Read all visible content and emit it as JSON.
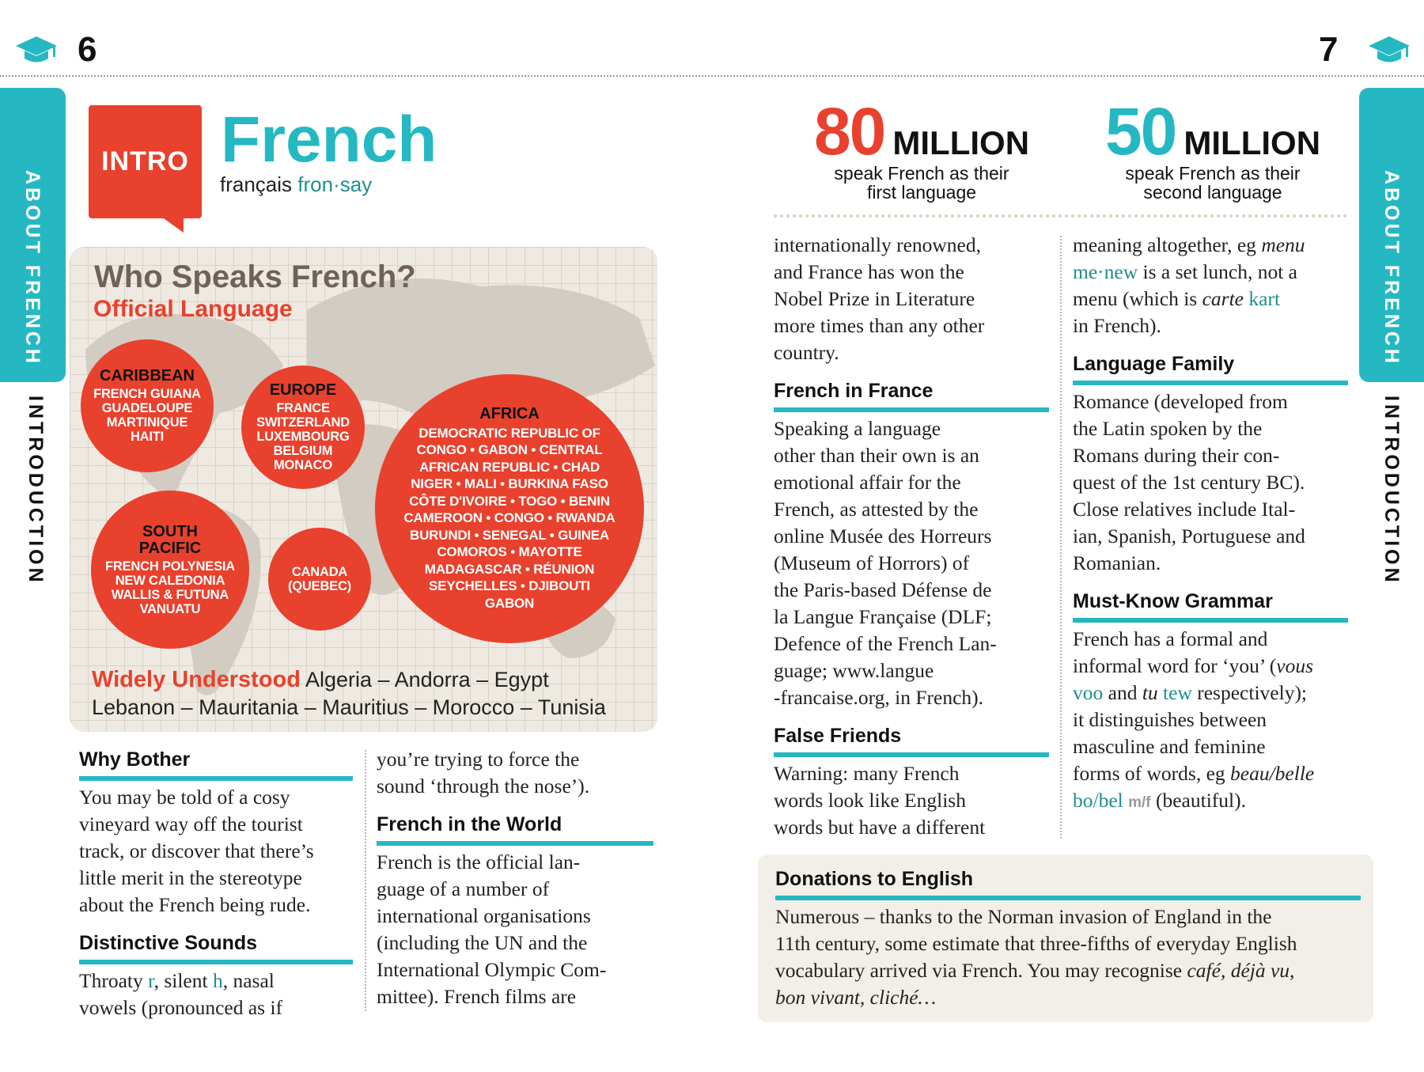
{
  "header": {
    "left_page_number": "6",
    "right_page_number": "7",
    "icon": "graduation-cap-icon",
    "accent": "#25b8c3",
    "red": "#e8412d"
  },
  "side_tabs": {
    "tab_label": "ABOUT FRENCH",
    "section_label": "INTRODUCTION"
  },
  "intro": {
    "badge": "INTRO",
    "title": "French",
    "native_name": "français",
    "pronunciation": "fron·say"
  },
  "map_panel": {
    "title": "Who Speaks French?",
    "subtitle": "Official Language",
    "regions": [
      {
        "name": "CARIBBEAN",
        "countries": [
          "FRENCH GUIANA",
          "GUADELOUPE",
          "MARTINIQUE",
          "HAITI"
        ]
      },
      {
        "name": "EUROPE",
        "countries": [
          "FRANCE",
          "SWITZERLAND",
          "LUXEMBOURG",
          "BELGIUM",
          "MONACO"
        ]
      },
      {
        "name": "SOUTH PACIFIC",
        "countries": [
          "FRENCH POLYNESIA",
          "NEW CALEDONIA",
          "WALLIS & FUTUNA",
          "VANUATU"
        ]
      },
      {
        "name": "",
        "countries": [
          "CANADA",
          "(QUEBEC)"
        ]
      },
      {
        "name": "AFRICA",
        "countries": [
          "DEMOCRATIC REPUBLIC OF",
          "CONGO • GABON • CENTRAL",
          "AFRICAN REPUBLIC • CHAD",
          "NIGER • MALI • BURKINA FASO",
          "CÔTE D'IVOIRE  • TOGO • BENIN",
          "CAMEROON • CONGO • RWANDA",
          "BURUNDI • SENEGAL • GUINEA",
          "COMOROS • MAYOTTE",
          "MADAGASCAR • RÉUNION",
          "SEYCHELLES • DJIBOUTI",
          "GABON"
        ]
      }
    ],
    "widely_label": "Widely Understood",
    "widely_line1": "Algeria – Andorra – Egypt",
    "widely_line2": "Lebanon – Mauritania – Mauritius – Morocco – Tunisia"
  },
  "stats": [
    {
      "number": "80",
      "unit": "MILLION",
      "line1": "speak French as their",
      "line2": "first language",
      "color": "#e8412d"
    },
    {
      "number": "50",
      "unit": "MILLION",
      "line1": "speak French as their",
      "line2": "second language",
      "color": "#25b8c3"
    }
  ],
  "columns": [
    [
      {
        "heading": "Why Bother"
      },
      {
        "lines": [
          "You may be told of a cosy",
          "vineyard way off the tourist",
          "track, or discover that there’s",
          "little merit in the stereotype",
          "about the French being rude."
        ]
      },
      {
        "heading": "Distinctive Sounds"
      },
      {
        "lines": [
          [
            [
              "Throaty ",
              ""
            ],
            [
              "r",
              "p"
            ],
            [
              ", silent ",
              ""
            ],
            [
              "h",
              "p"
            ],
            [
              ", nasal",
              ""
            ]
          ],
          "vowels (pronounced as if"
        ]
      }
    ],
    [
      {
        "lines": [
          "you’re trying to force the",
          "sound ‘through the nose’)."
        ]
      },
      {
        "heading": "French in the World"
      },
      {
        "lines": [
          "French is the official lan-",
          "guage of a number of",
          "international organisations",
          "(including the UN and the",
          "International Olympic Com-",
          "mittee). French films are"
        ]
      }
    ],
    [
      {
        "lines": [
          "internationally renowned,",
          "and France has won the",
          "Nobel Prize in Literature",
          "more times than any other",
          "country."
        ]
      },
      {
        "heading": "French in France"
      },
      {
        "lines": [
          "Speaking a language",
          "other than their own is an",
          "emotional affair for the",
          "French, as attested by the",
          "online Musée des Horreurs",
          "(Museum of Horrors) of",
          "the Paris-based Défense de",
          "la Langue Française (DLF;",
          "Defence of the French Lan-",
          "guage; www.langue",
          "-francaise.org, in French)."
        ]
      },
      {
        "heading": "False Friends"
      },
      {
        "lines": [
          "Warning: many French",
          "words look like English",
          "words but have a different"
        ]
      }
    ],
    [
      {
        "lines": [
          [
            [
              "meaning altogether, eg ",
              ""
            ],
            [
              "menu",
              "i"
            ]
          ],
          [
            [
              "me·new",
              "p"
            ],
            [
              " is a set lunch, not a",
              ""
            ]
          ],
          [
            [
              "menu (which is ",
              ""
            ],
            [
              "carte",
              "i"
            ],
            [
              " ",
              ""
            ],
            [
              "kart",
              "p"
            ]
          ],
          "in French)."
        ]
      },
      {
        "heading": "Language Family"
      },
      {
        "lines": [
          "Romance (developed from",
          "the Latin spoken by the",
          "Romans during their con-",
          "quest of the 1st century BC).",
          "Close relatives include Ital-",
          "ian, Spanish, Portuguese and",
          "Romanian."
        ]
      },
      {
        "heading": "Must-Know Grammar"
      },
      {
        "lines": [
          "French has a formal and",
          [
            [
              "informal word for ‘you’ (",
              ""
            ],
            [
              "vous",
              "i"
            ]
          ],
          [
            [
              "voo",
              "p"
            ],
            [
              " and ",
              ""
            ],
            [
              "tu",
              "i"
            ],
            [
              " ",
              ""
            ],
            [
              "tew",
              "p"
            ],
            [
              " respectively);",
              ""
            ]
          ],
          "it distinguishes between",
          "masculine and feminine",
          [
            [
              "forms of words, eg ",
              ""
            ],
            [
              "beau/belle",
              "i"
            ]
          ],
          [
            [
              "bo/bel",
              "p"
            ],
            [
              " ",
              ""
            ],
            [
              "m/f",
              "g"
            ],
            [
              " (beautiful).",
              ""
            ]
          ]
        ]
      }
    ]
  ],
  "donations": [
    {
      "heading": "Donations to English"
    },
    {
      "lines": [
        "Numerous – thanks to the Norman invasion of England in the",
        "11th century, some estimate that three-fifths of everyday English",
        [
          [
            "vocabulary arrived via French. You may recognise ",
            ""
          ],
          [
            "café, déjà vu,",
            "i"
          ]
        ],
        [
          [
            "bon vivant, cliché…",
            "i"
          ]
        ]
      ]
    }
  ]
}
